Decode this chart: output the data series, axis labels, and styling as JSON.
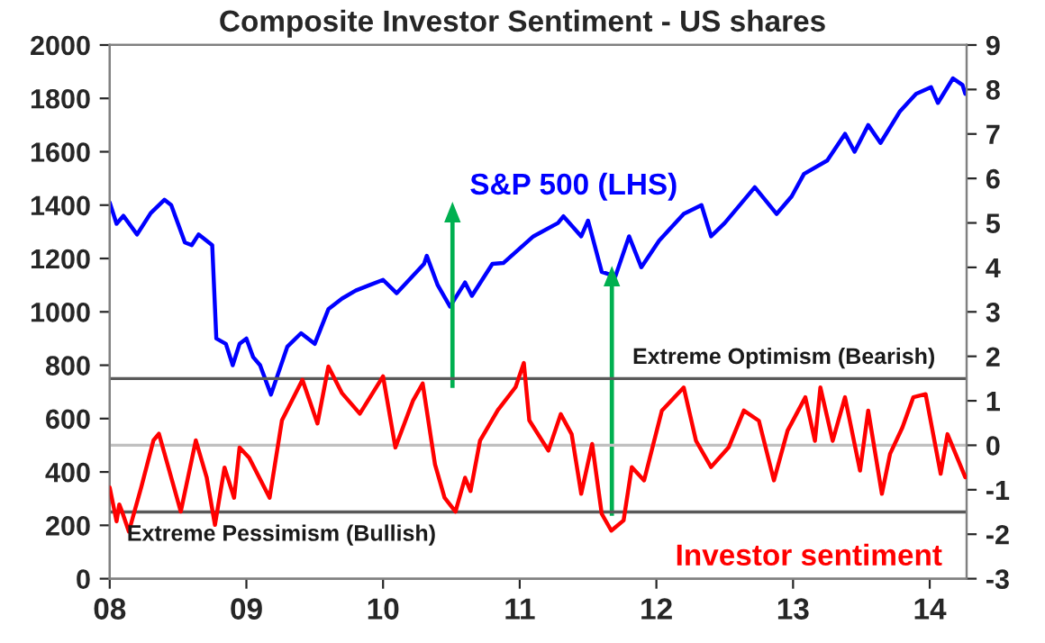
{
  "chart_data": {
    "type": "line",
    "title": "Composite Investor Sentiment - US shares",
    "xlim": [
      2008,
      2014.27
    ],
    "xticks": [
      {
        "value": 2008,
        "label": "08"
      },
      {
        "value": 2009,
        "label": "09"
      },
      {
        "value": 2010,
        "label": "10"
      },
      {
        "value": 2011,
        "label": "11"
      },
      {
        "value": 2012,
        "label": "12"
      },
      {
        "value": 2013,
        "label": "13"
      },
      {
        "value": 2014,
        "label": "14"
      }
    ],
    "ylim": [
      0,
      2000
    ],
    "yticks": [
      0,
      200,
      400,
      600,
      800,
      1000,
      1200,
      1400,
      1600,
      1800,
      2000
    ],
    "y2lim": [
      -3,
      9
    ],
    "y2ticks": [
      {
        "value": -3,
        "label": "-3"
      },
      {
        "value": -2,
        "label": "-2"
      },
      {
        "value": -1,
        "label": "-1"
      },
      0,
      1,
      2,
      3,
      4,
      5,
      6,
      7,
      8,
      9
    ],
    "grid": false,
    "legend": false,
    "ref_lines": [
      {
        "axis": "y2",
        "value": 1.5,
        "label": "Extreme Optimism (Bearish)",
        "color": "#595959"
      },
      {
        "axis": "y2",
        "value": -1.5,
        "label": "Extreme Pessimism (Bullish)",
        "color": "#595959"
      },
      {
        "axis": "y2",
        "value": 0,
        "label": null,
        "color": "#c0c0c0"
      }
    ],
    "series": [
      {
        "name": "S&P 500 (LHS)",
        "color": "#0000ff",
        "x": [
          2008.0,
          2008.05,
          2008.1,
          2008.2,
          2008.3,
          2008.4,
          2008.45,
          2008.55,
          2008.6,
          2008.65,
          2008.7,
          2008.75,
          2008.78,
          2008.85,
          2008.9,
          2008.95,
          2009.0,
          2009.05,
          2009.1,
          2009.18,
          2009.3,
          2009.4,
          2009.5,
          2009.6,
          2009.7,
          2009.8,
          2009.9,
          2010.0,
          2010.1,
          2010.3,
          2010.32,
          2010.4,
          2010.49,
          2010.6,
          2010.65,
          2010.8,
          2010.88,
          2011.1,
          2011.28,
          2011.32,
          2011.45,
          2011.5,
          2011.6,
          2011.7,
          2011.8,
          2011.89,
          2012.02,
          2012.2,
          2012.33,
          2012.4,
          2012.5,
          2012.72,
          2012.88,
          2012.99,
          2013.08,
          2013.25,
          2013.38,
          2013.45,
          2013.55,
          2013.64,
          2013.78,
          2013.9,
          2014.01,
          2014.06,
          2014.17,
          2014.24,
          2014.26
        ],
        "values": [
          1410,
          1330,
          1360,
          1290,
          1370,
          1420,
          1400,
          1260,
          1250,
          1290,
          1270,
          1250,
          900,
          880,
          800,
          880,
          900,
          830,
          800,
          690,
          870,
          920,
          880,
          1010,
          1050,
          1080,
          1100,
          1120,
          1070,
          1180,
          1210,
          1100,
          1020,
          1110,
          1060,
          1180,
          1183,
          1283,
          1333,
          1358,
          1283,
          1342,
          1150,
          1133,
          1283,
          1167,
          1267,
          1367,
          1400,
          1283,
          1333,
          1467,
          1367,
          1433,
          1517,
          1567,
          1667,
          1600,
          1700,
          1633,
          1750,
          1817,
          1842,
          1783,
          1875,
          1850,
          1817
        ]
      },
      {
        "name": "Investor sentiment",
        "color": "#ff0000",
        "axis": "y2",
        "x": [
          2008.0,
          2008.05,
          2008.07,
          2008.09,
          2008.14,
          2008.23,
          2008.32,
          2008.36,
          2008.52,
          2008.63,
          2008.71,
          2008.77,
          2008.84,
          2008.91,
          2008.95,
          2009.02,
          2009.17,
          2009.26,
          2009.41,
          2009.52,
          2009.6,
          2009.7,
          2009.83,
          2010.0,
          2010.09,
          2010.22,
          2010.29,
          2010.38,
          2010.45,
          2010.53,
          2010.6,
          2010.64,
          2010.71,
          2010.84,
          2010.97,
          2011.03,
          2011.07,
          2011.21,
          2011.3,
          2011.38,
          2011.45,
          2011.53,
          2011.6,
          2011.67,
          2011.76,
          2011.82,
          2011.91,
          2012.04,
          2012.2,
          2012.29,
          2012.4,
          2012.53,
          2012.64,
          2012.75,
          2012.86,
          2012.96,
          2013.09,
          2013.16,
          2013.2,
          2013.29,
          2013.38,
          2013.49,
          2013.55,
          2013.65,
          2013.71,
          2013.8,
          2013.88,
          2013.97,
          2014.08,
          2014.13,
          2014.2,
          2014.26
        ],
        "values": [
          -0.95,
          -1.71,
          -1.33,
          -1.49,
          -1.94,
          -0.95,
          0.11,
          0.26,
          -1.49,
          0.11,
          -0.73,
          -1.79,
          -0.5,
          -1.18,
          -0.05,
          -0.28,
          -1.18,
          0.56,
          1.47,
          0.49,
          1.77,
          1.17,
          0.71,
          1.55,
          -0.05,
          1.01,
          1.39,
          -0.43,
          -1.18,
          -1.49,
          -0.73,
          -1.03,
          0.11,
          0.79,
          1.31,
          1.85,
          0.56,
          -0.12,
          0.7,
          0.25,
          -1.09,
          0.03,
          -1.54,
          -1.92,
          -1.69,
          -0.49,
          -0.79,
          0.78,
          1.3,
          0.1,
          -0.49,
          -0.04,
          0.78,
          0.55,
          -0.79,
          0.33,
          1.08,
          0.1,
          1.3,
          0.1,
          1.08,
          -0.57,
          0.78,
          -1.09,
          -0.19,
          0.4,
          1.08,
          1.15,
          -0.64,
          0.25,
          -0.27,
          -0.72
        ]
      }
    ]
  }
}
